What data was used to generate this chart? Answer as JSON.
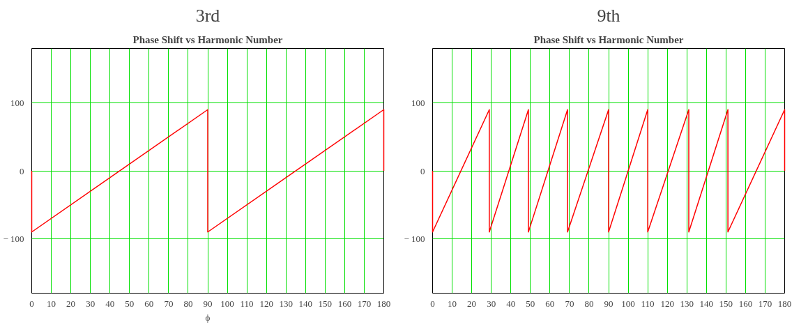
{
  "chart_data": [
    {
      "type": "line",
      "title": "3rd",
      "subtitle": "Phase Shift vs Harmonic Number",
      "xlabel": "ϕ",
      "xlim": [
        0,
        180
      ],
      "ylim": [
        -180,
        180
      ],
      "xticks": [
        0,
        10,
        20,
        30,
        40,
        50,
        60,
        70,
        80,
        90,
        100,
        110,
        120,
        130,
        140,
        150,
        160,
        170,
        180
      ],
      "yticks": [
        {
          "value": -100,
          "label": "− 100"
        },
        0,
        100
      ],
      "grid": true,
      "marker": "none",
      "line_style": "solid",
      "series": [
        {
          "color": "#ff0000",
          "x": [
            0,
            0,
            90,
            90,
            180,
            180
          ],
          "values": [
            0,
            -90,
            90,
            -90,
            90,
            0
          ]
        }
      ]
    },
    {
      "type": "line",
      "title": "9th",
      "subtitle": "Phase Shift vs Harmonic Number",
      "xlim": [
        0,
        180
      ],
      "ylim": [
        -180,
        180
      ],
      "xticks": [
        0,
        10,
        20,
        30,
        40,
        50,
        60,
        70,
        80,
        90,
        100,
        110,
        120,
        130,
        140,
        150,
        160,
        170,
        180
      ],
      "yticks": [
        {
          "value": -100,
          "label": "− 100"
        },
        0,
        100
      ],
      "grid": true,
      "marker": "none",
      "line_style": "solid",
      "series": [
        {
          "color": "#ff0000",
          "x": [
            0,
            0,
            29,
            29,
            49,
            49,
            69,
            69,
            90,
            90,
            110,
            110,
            131,
            131,
            151,
            151,
            180,
            180
          ],
          "values": [
            0,
            -90,
            90,
            -90,
            90,
            -90,
            90,
            -90,
            90,
            -90,
            90,
            -90,
            90,
            -90,
            90,
            -90,
            90,
            0
          ]
        }
      ]
    }
  ]
}
